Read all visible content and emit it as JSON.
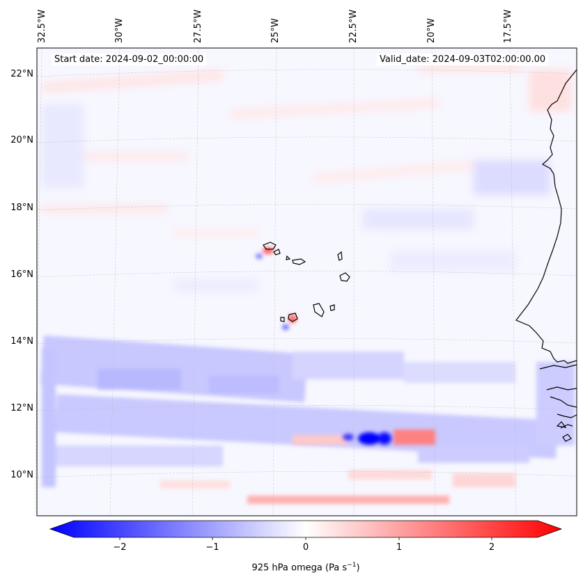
{
  "map": {
    "start_label": "Start date: 2024-09-02_00:00:00",
    "valid_label": "Valid_date: 2024-09-03T02:00:00.00",
    "lon_labels": [
      "32.5°W",
      "30°W",
      "27.5°W",
      "25°W",
      "22.5°W",
      "20°W",
      "17.5°W"
    ],
    "lat_labels": [
      "22°N",
      "20°N",
      "18°N",
      "16°N",
      "14°N",
      "12°N",
      "10°N"
    ],
    "projection": "Lambert conformal",
    "gridlines": true,
    "coastline": "Cape Verde islands and West African coast (Senegal, Gambia, Guinea-Bissau)",
    "field": "925 hPa vertical velocity (omega)",
    "features": [
      {
        "name": "ITCZ ascent band",
        "sign": "negative",
        "lat_range": [
          10.5,
          14
        ]
      },
      {
        "name": "strong ascent core",
        "sign": "negative",
        "lat": 11.2,
        "lon": -21.5
      },
      {
        "name": "subsidence south band",
        "sign": "positive",
        "lat": 9.3
      }
    ]
  },
  "colorbar": {
    "ticks": [
      "−2",
      "−1",
      "0",
      "1",
      "2"
    ],
    "label": "925 hPa omega (Pa s$^{-1}$)",
    "label_text": "925 hPa omega (Pa s",
    "label_exp": "−1",
    "label_close": ")",
    "cmap": "bwr",
    "vmin": -2.6,
    "vmax": 2.6,
    "colors": {
      "negative": "#0000ff",
      "zero": "#ffffff",
      "positive": "#ff0000"
    }
  }
}
